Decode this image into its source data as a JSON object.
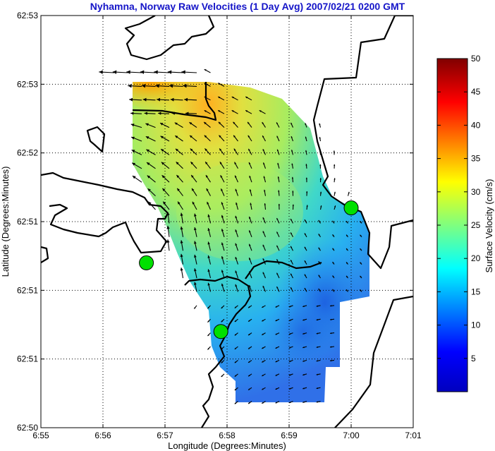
{
  "title": "Nyhamna, Norway Raw Velocities (1 Day Avg) 2007/02/21 0200 GMT",
  "map": {
    "xlabel": "Longitude (Degrees:Minutes)",
    "ylabel": "Latitude (Degrees:Minutes)",
    "x_ticks": [
      "6:55",
      "6:56",
      "6:57",
      "6:58",
      "6:59",
      "7:00",
      "7:01"
    ],
    "y_ticks": [
      "62:53",
      "62:53",
      "62:52",
      "62:51",
      "62:51",
      "62:51",
      "62:50"
    ],
    "grid": true,
    "land_color": "#ffffff",
    "coast_color": "#000000",
    "stations": [
      {
        "name": "station-west",
        "lon_min": 56.7,
        "lat_min": 51.2
      },
      {
        "name": "station-south",
        "lon_min": 57.9,
        "lat_min": 50.7
      },
      {
        "name": "station-east",
        "lon_min": 60.0,
        "lat_min": 51.6
      }
    ],
    "station_color": "#00e000"
  },
  "colorbar": {
    "label": "Surface Velocity (cm/s)",
    "ticks": [
      "5",
      "10",
      "15",
      "20",
      "25",
      "30",
      "35",
      "40",
      "45",
      "50"
    ],
    "min": 0,
    "max": 50,
    "colormap": "jet"
  }
}
